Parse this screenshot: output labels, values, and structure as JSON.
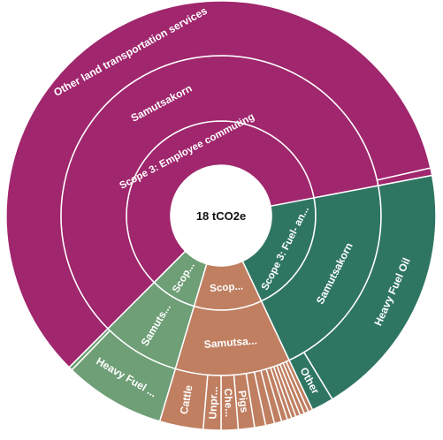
{
  "chart_data": {
    "type": "sunburst",
    "center_label": "18 tCO2e",
    "colors": {
      "employee_commuting": "#A0266D",
      "fuel_energy": "#2F7662",
      "purchased_goods": "#C07F61",
      "light_green": "#6E9F76",
      "ring_divider": "#ffffff"
    },
    "inner_ring": [
      {
        "label": "Scope 3: Employee commuting",
        "display": "Scope 3: Employee commuting",
        "value": 10.71,
        "color": "#A0266D"
      },
      {
        "label": "Scope 3: Fuel- and energy-related activities",
        "display": "Scope 3: Fuel- an...",
        "value": 3.78,
        "color": "#2F7662"
      },
      {
        "label": "Scope 3: Purchased goods",
        "display": "Scop...",
        "value": 2.09,
        "color": "#C07F61"
      },
      {
        "label": "Scope 3",
        "display": "Scop...",
        "value": 1.42,
        "color": "#6E9F76"
      }
    ],
    "middle_ring": [
      {
        "label": "Samutsakorn",
        "display": "Samutsakorn",
        "value": 10.71,
        "color": "#A0266D"
      },
      {
        "label": "Samutsakorn",
        "display": "Samutsakorn",
        "value": 3.78,
        "color": "#2F7662"
      },
      {
        "label": "Samutsakorn",
        "display": "Samutsa...",
        "value": 2.09,
        "color": "#C07F61"
      },
      {
        "label": "Samutsakorn",
        "display": "Samuts...",
        "value": 1.42,
        "color": "#6E9F76"
      }
    ],
    "outer_ring": [
      {
        "label": "Other land transportation services",
        "display": "Other land transportation services",
        "value": 10.61,
        "color": "#A0266D"
      },
      {
        "label": "",
        "display": "",
        "value": 0.1,
        "color": "#A0266D"
      },
      {
        "label": "Heavy Fuel Oil",
        "display": "Heavy Fuel Oil",
        "value": 3.48,
        "color": "#2F7662"
      },
      {
        "label": "Other",
        "display": "Other",
        "value": 0.3,
        "color": "#2F7662"
      },
      {
        "label": "",
        "display": "",
        "value": 0.06,
        "color": "#C07F61"
      },
      {
        "label": "",
        "display": "",
        "value": 0.06,
        "color": "#C07F61"
      },
      {
        "label": "",
        "display": "",
        "value": 0.06,
        "color": "#C07F61"
      },
      {
        "label": "",
        "display": "",
        "value": 0.06,
        "color": "#C07F61"
      },
      {
        "label": "",
        "display": "",
        "value": 0.06,
        "color": "#C07F61"
      },
      {
        "label": "",
        "display": "",
        "value": 0.06,
        "color": "#C07F61"
      },
      {
        "label": "",
        "display": "",
        "value": 0.08,
        "color": "#C07F61"
      },
      {
        "label": "",
        "display": "",
        "value": 0.1,
        "color": "#C07F61"
      },
      {
        "label": "",
        "display": "",
        "value": 0.12,
        "color": "#C07F61"
      },
      {
        "label": "",
        "display": "",
        "value": 0.15,
        "color": "#C07F61"
      },
      {
        "label": "Pigs",
        "display": "Pigs",
        "value": 0.22,
        "color": "#C07F61"
      },
      {
        "label": "Che...",
        "display": "Che...",
        "value": 0.23,
        "color": "#C07F61"
      },
      {
        "label": "Unpr...",
        "display": "Unpr...",
        "value": 0.24,
        "color": "#C07F61"
      },
      {
        "label": "Cattle",
        "display": "Cattle",
        "value": 0.59,
        "color": "#C07F61"
      },
      {
        "label": "Heavy Fuel ...",
        "display": "Heavy Fuel ...",
        "value": 1.37,
        "color": "#6E9F76"
      },
      {
        "label": "",
        "display": "",
        "value": 0.05,
        "color": "#6E9F76"
      }
    ]
  }
}
